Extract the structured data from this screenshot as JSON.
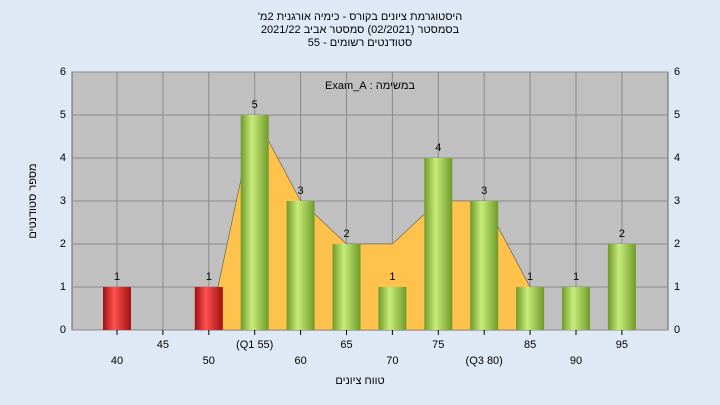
{
  "chart_data": {
    "type": "bar",
    "title": "היסטוגרמת ציונים בקורס - כימיה אורגנית 2מ'",
    "subtitle": "בסמסטר  (02/2021)  סמסטר אביב 2021/22",
    "subtitle2": "סטודנטים רשומים - 55",
    "annotation": "במשימה : Exam_A",
    "xlabel": "טווח ציונים",
    "ylabel": "מספר סטודנטים",
    "categories": [
      "40",
      "45",
      "50",
      "(Q1 55)",
      "60",
      "65",
      "70",
      "75",
      "(Q3 80)",
      "85",
      "90",
      "95"
    ],
    "values": [
      1,
      0,
      1,
      5,
      3,
      2,
      1,
      4,
      3,
      1,
      1,
      2
    ],
    "colors": [
      "#e03030",
      "#e03030",
      "#e03030",
      "#9acd4a",
      "#9acd4a",
      "#9acd4a",
      "#9acd4a",
      "#9acd4a",
      "#9acd4a",
      "#9acd4a",
      "#9acd4a",
      "#9acd4a"
    ],
    "area": {
      "color": "#ffc34d",
      "values": [
        null,
        null,
        0,
        5,
        3,
        2,
        2,
        3,
        3,
        1,
        null,
        null
      ]
    },
    "ylim": [
      0,
      6
    ],
    "yticks": [
      0,
      1,
      2,
      3,
      4,
      5,
      6
    ],
    "grid": true
  }
}
